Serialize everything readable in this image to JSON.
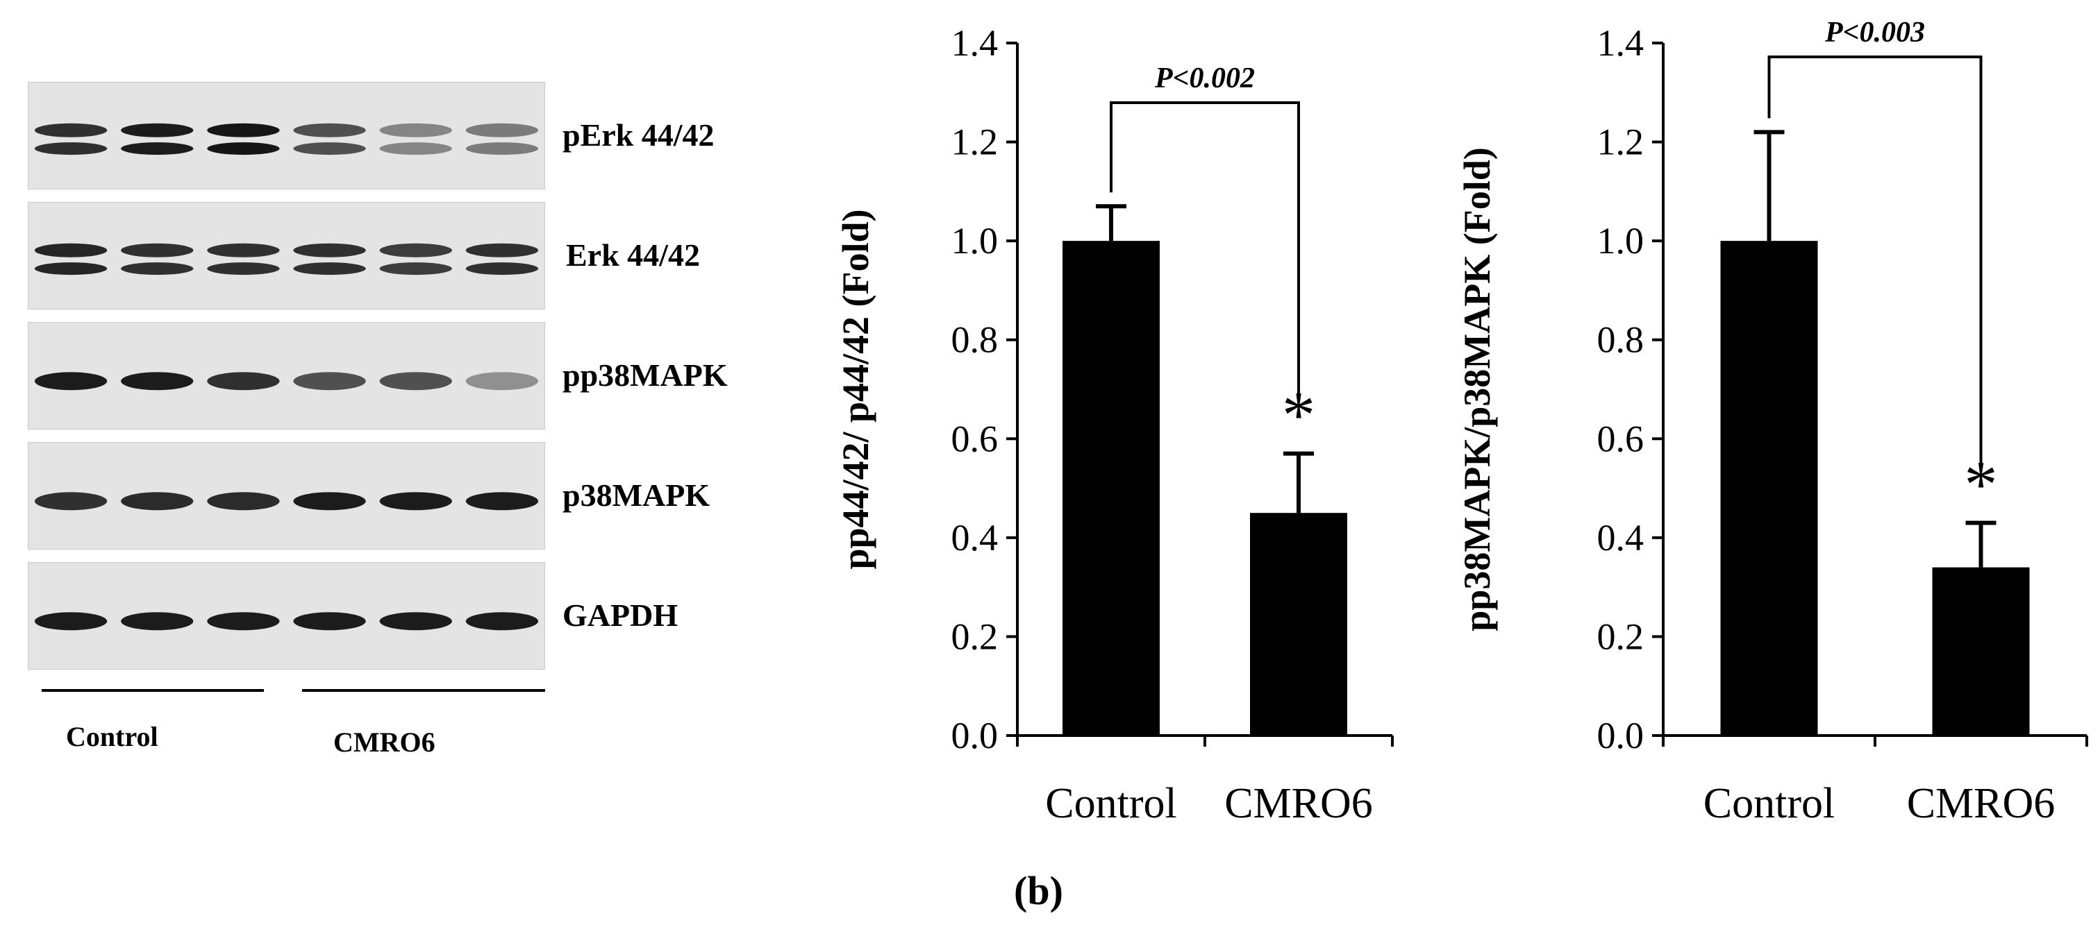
{
  "panel_label": "(b)",
  "blot": {
    "bands": [
      "pErk 44/42",
      "Erk 44/42",
      "pp38MAPK",
      "p38MAPK",
      "GAPDH"
    ],
    "groups": [
      "Control",
      "CMRO6"
    ],
    "intensities": [
      [
        0.85,
        0.95,
        0.98,
        0.7,
        0.45,
        0.5
      ],
      [
        0.9,
        0.85,
        0.85,
        0.85,
        0.8,
        0.85
      ],
      [
        0.95,
        0.95,
        0.85,
        0.7,
        0.7,
        0.4
      ],
      [
        0.85,
        0.88,
        0.88,
        0.95,
        0.95,
        0.95
      ],
      [
        0.95,
        0.95,
        0.95,
        0.95,
        0.95,
        0.95
      ]
    ]
  },
  "chart_data": [
    {
      "type": "bar",
      "categories": [
        "Control",
        "CMRO6"
      ],
      "values": [
        1.0,
        0.45
      ],
      "errors": [
        0.07,
        0.12
      ],
      "ylabel": "pp44/42/ p44/42 (Fold)",
      "ylim": [
        0,
        1.4
      ],
      "yticks": [
        "0.0",
        "0.2",
        "0.4",
        "0.6",
        "0.8",
        "1.0",
        "1.2",
        "1.4"
      ],
      "significance": {
        "text": "P<0.002",
        "marker": "*"
      },
      "bar_color": "#000000"
    },
    {
      "type": "bar",
      "categories": [
        "Control",
        "CMRO6"
      ],
      "values": [
        1.0,
        0.34
      ],
      "errors": [
        0.22,
        0.09
      ],
      "ylabel": "pp38MAPK/p38MAPK (Fold)",
      "ylim": [
        0,
        1.4
      ],
      "yticks": [
        "0.0",
        "0.2",
        "0.4",
        "0.6",
        "0.8",
        "1.0",
        "1.2",
        "1.4"
      ],
      "significance": {
        "text": "P<0.003",
        "marker": "*"
      },
      "bar_color": "#000000"
    }
  ]
}
